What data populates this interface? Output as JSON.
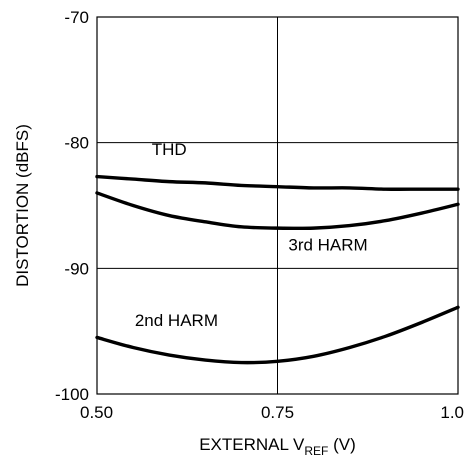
{
  "chart_data": {
    "type": "line",
    "title": "",
    "xlabel": "EXTERNAL V",
    "xlabel_sub": "REF",
    "xlabel_unit": " (V)",
    "ylabel": "DISTORTION (dBFS)",
    "xlim": [
      0.5,
      1.0
    ],
    "ylim": [
      -100,
      -70
    ],
    "grid": true,
    "x_ticks": [
      {
        "value": 0.5,
        "label": "0.50"
      },
      {
        "value": 0.75,
        "label": "0.75"
      },
      {
        "value": 1.0,
        "label": "1.0"
      }
    ],
    "y_ticks": [
      {
        "value": -70,
        "label": "-70"
      },
      {
        "value": -80,
        "label": "-80"
      },
      {
        "value": -90,
        "label": "-90"
      },
      {
        "value": -100,
        "label": "-100"
      }
    ],
    "series": [
      {
        "name": "THD",
        "label_at": [
          0.6,
          -81.0
        ],
        "x": [
          0.5,
          0.55,
          0.6,
          0.65,
          0.7,
          0.75,
          0.8,
          0.85,
          0.9,
          0.95,
          1.0
        ],
        "values": [
          -82.7,
          -82.9,
          -83.1,
          -83.2,
          -83.4,
          -83.5,
          -83.6,
          -83.6,
          -83.7,
          -83.7,
          -83.7
        ]
      },
      {
        "name": "3rd HARM",
        "label_at": [
          0.82,
          -88.6
        ],
        "x": [
          0.5,
          0.55,
          0.6,
          0.65,
          0.7,
          0.75,
          0.8,
          0.85,
          0.9,
          0.95,
          1.0
        ],
        "values": [
          -84.0,
          -85.0,
          -85.8,
          -86.3,
          -86.7,
          -86.8,
          -86.8,
          -86.6,
          -86.2,
          -85.6,
          -84.9
        ]
      },
      {
        "name": "2nd HARM",
        "label_at": [
          0.61,
          -94.6
        ],
        "x": [
          0.5,
          0.55,
          0.6,
          0.65,
          0.7,
          0.75,
          0.8,
          0.85,
          0.9,
          0.95,
          1.0
        ],
        "values": [
          -95.5,
          -96.3,
          -96.9,
          -97.3,
          -97.5,
          -97.4,
          -97.0,
          -96.3,
          -95.4,
          -94.3,
          -93.1
        ]
      }
    ]
  }
}
